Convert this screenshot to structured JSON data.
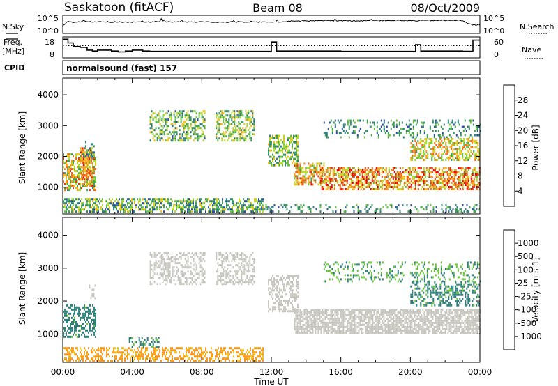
{
  "header": {
    "station": "Saskatoon (fitACF)",
    "beam": "Beam 08",
    "date": "08/Oct/2009"
  },
  "colors": {
    "power_scale": [
      "#1a1aff",
      "#2a4ea0",
      "#2f7f7a",
      "#3f9f55",
      "#6cc23e",
      "#b7d92a",
      "#f0c020",
      "#f59a1e",
      "#f06a1a",
      "#e03a12",
      "#ff0000"
    ],
    "velocity_scale": [
      "#1a1aff",
      "#2a4ea0",
      "#2f7f7a",
      "#6cc23e",
      "#c8c8c0",
      "#f0c020",
      "#f59a1e",
      "#f06a1a",
      "#ff0000"
    ],
    "ground_scatter": "#c8c8c0"
  },
  "chart_data": [
    {
      "type": "line",
      "id": "noise",
      "left_label": "N.Sky",
      "right_label": "N.Search",
      "left_ticks": [
        "10^5",
        "10^0"
      ],
      "right_ticks": [
        "10^5",
        "10^0"
      ],
      "x": [
        0,
        0.3,
        0.5,
        1.0,
        1.2,
        1.5,
        2.0,
        3.0,
        4.0,
        5.0,
        5.5,
        6.0,
        7.0,
        8.0,
        9.0,
        10.0,
        11.0,
        12.0,
        12.5,
        13.0,
        14.0,
        15.0,
        16.0,
        17.0,
        18.0,
        19.0,
        20.0,
        21.0,
        22.0,
        23.0,
        23.5,
        24.0
      ],
      "y": [
        2.2,
        3.4,
        3.2,
        3.4,
        3.7,
        3.4,
        3.3,
        3.3,
        3.2,
        3.3,
        3.4,
        3.3,
        3.3,
        3.3,
        3.2,
        3.3,
        3.3,
        3.3,
        3.2,
        3.5,
        3.6,
        3.7,
        3.7,
        3.7,
        3.8,
        3.8,
        3.7,
        3.8,
        3.8,
        3.8,
        2.4,
        2.2
      ],
      "xlim": [
        0,
        24
      ],
      "ylim": [
        0,
        5
      ]
    },
    {
      "type": "line",
      "id": "frequency",
      "left_label": "Freq.",
      "left_unit": "[MHz]",
      "right_label": "Nave",
      "left_ticks": [
        18,
        8
      ],
      "right_ticks": [
        60,
        0
      ],
      "series": [
        {
          "role": "frequency",
          "x": [
            0,
            0.3,
            0.6,
            1.0,
            1.4,
            1.7,
            2.0,
            2.4,
            2.8,
            3.2,
            3.6,
            4.0,
            4.6,
            5.0,
            6.0,
            8.0,
            10.0,
            11.8,
            12.0,
            12.3,
            16.0,
            20.0,
            20.3,
            20.6,
            23.0,
            23.6,
            24.0
          ],
          "y": [
            17.5,
            15.5,
            13.5,
            13.0,
            11.5,
            11.0,
            11.5,
            11.5,
            11.0,
            10.5,
            11.0,
            11.5,
            11.0,
            10.8,
            10.8,
            10.8,
            10.8,
            10.8,
            16.0,
            11.0,
            10.8,
            10.8,
            14.5,
            11.0,
            10.9,
            17.0,
            17.0
          ]
        },
        {
          "role": "nave",
          "x": [
            0,
            1.0,
            2.0,
            4.0,
            8.0,
            12.0,
            16.0,
            20.0,
            24.0
          ],
          "y": [
            36,
            36,
            36,
            36,
            36,
            36,
            36,
            36,
            36
          ]
        }
      ],
      "xlim": [
        0,
        24
      ],
      "ylim": [
        8,
        18
      ],
      "ylim_right": [
        0,
        60
      ]
    },
    {
      "type": "table",
      "id": "cpid",
      "label": "CPID",
      "value": "normalsound (fast) 157"
    },
    {
      "type": "heatmap",
      "id": "power",
      "ylabel": "Slant Range [km]",
      "colorbar_label": "Power [dB]",
      "colorbar_ticks": [
        28,
        24,
        20,
        16,
        12,
        8,
        4
      ],
      "yticks": [
        1000,
        2000,
        3000,
        4000
      ],
      "xlim": [
        0,
        24
      ],
      "ylim": [
        180,
        4500
      ],
      "clim": [
        0,
        30
      ],
      "regions": [
        {
          "t0": 0.0,
          "t1": 1.9,
          "r0": 900,
          "r1": 2100,
          "v0": 8,
          "v1": 26,
          "density": 0.55
        },
        {
          "t0": 1.0,
          "t1": 1.7,
          "r0": 1100,
          "r1": 2300,
          "v0": 14,
          "v1": 28,
          "density": 0.5
        },
        {
          "t0": 1.2,
          "t1": 1.8,
          "r0": 2000,
          "r1": 2500,
          "v0": 4,
          "v1": 12,
          "density": 0.3
        },
        {
          "t0": 0.0,
          "t1": 11.5,
          "r0": 180,
          "r1": 650,
          "v0": 4,
          "v1": 18,
          "density": 0.55
        },
        {
          "t0": 11.5,
          "t1": 24.0,
          "r0": 180,
          "r1": 450,
          "v0": 4,
          "v1": 12,
          "density": 0.25
        },
        {
          "t0": 5.0,
          "t1": 8.2,
          "r0": 2500,
          "r1": 3500,
          "v0": 5,
          "v1": 18,
          "density": 0.45
        },
        {
          "t0": 8.8,
          "t1": 11.0,
          "r0": 2500,
          "r1": 3500,
          "v0": 6,
          "v1": 20,
          "density": 0.55
        },
        {
          "t0": 11.8,
          "t1": 13.5,
          "r0": 1700,
          "r1": 2700,
          "v0": 6,
          "v1": 18,
          "density": 0.5
        },
        {
          "t0": 13.3,
          "t1": 15.0,
          "r0": 1100,
          "r1": 1800,
          "v0": 10,
          "v1": 28,
          "density": 0.55
        },
        {
          "t0": 14.8,
          "t1": 24.0,
          "r0": 950,
          "r1": 1650,
          "v0": 12,
          "v1": 30,
          "density": 0.6
        },
        {
          "t0": 15.0,
          "t1": 24.0,
          "r0": 2600,
          "r1": 3200,
          "v0": 4,
          "v1": 12,
          "density": 0.25
        },
        {
          "t0": 20.0,
          "t1": 24.0,
          "r0": 1900,
          "r1": 2600,
          "v0": 10,
          "v1": 24,
          "density": 0.5
        }
      ]
    },
    {
      "type": "heatmap",
      "id": "velocity",
      "ylabel": "Slant Range [km]",
      "colorbar_label": "Velocity [m s-1]",
      "colorbar_ticks": [
        "1000",
        "500",
        "100",
        "25",
        "-25",
        "-100",
        "-500",
        "-1000"
      ],
      "yticks": [
        1000,
        2000,
        3000,
        4000
      ],
      "xlabel": "Time UT",
      "xticks": [
        "00:00",
        "04:00",
        "08:00",
        "12:00",
        "16:00",
        "20:00",
        "00:00"
      ],
      "xlim": [
        0,
        24
      ],
      "ylim": [
        180,
        4500
      ],
      "regions": [
        {
          "t0": 0.0,
          "t1": 1.9,
          "r0": 900,
          "r1": 1900,
          "v0": 80,
          "v1": 400,
          "density": 0.5
        },
        {
          "t0": 1.5,
          "t1": 1.9,
          "r0": 2100,
          "r1": 2500,
          "v0": -20,
          "v1": 20,
          "density": 0.4
        },
        {
          "t0": 0.0,
          "t1": 11.5,
          "r0": 180,
          "r1": 600,
          "v0": -300,
          "v1": -30,
          "density": 0.45
        },
        {
          "t0": 3.8,
          "t1": 5.5,
          "r0": 600,
          "r1": 900,
          "v0": 50,
          "v1": 200,
          "density": 0.4
        },
        {
          "t0": 5.0,
          "t1": 8.2,
          "r0": 2500,
          "r1": 3500,
          "v0": -25,
          "v1": 25,
          "density": 0.4
        },
        {
          "t0": 8.8,
          "t1": 11.0,
          "r0": 2500,
          "r1": 3500,
          "v0": -25,
          "v1": 25,
          "density": 0.5
        },
        {
          "t0": 11.8,
          "t1": 13.5,
          "r0": 1700,
          "r1": 2800,
          "v0": -25,
          "v1": 25,
          "density": 0.5
        },
        {
          "t0": 13.3,
          "t1": 24.0,
          "r0": 1000,
          "r1": 1750,
          "v0": -25,
          "v1": 25,
          "density": 0.75
        },
        {
          "t0": 15.0,
          "t1": 24.0,
          "r0": 2600,
          "r1": 3200,
          "v0": 30,
          "v1": 150,
          "density": 0.25
        },
        {
          "t0": 20.0,
          "t1": 24.0,
          "r0": 1900,
          "r1": 2600,
          "v0": 40,
          "v1": 400,
          "density": 0.45
        }
      ]
    }
  ]
}
